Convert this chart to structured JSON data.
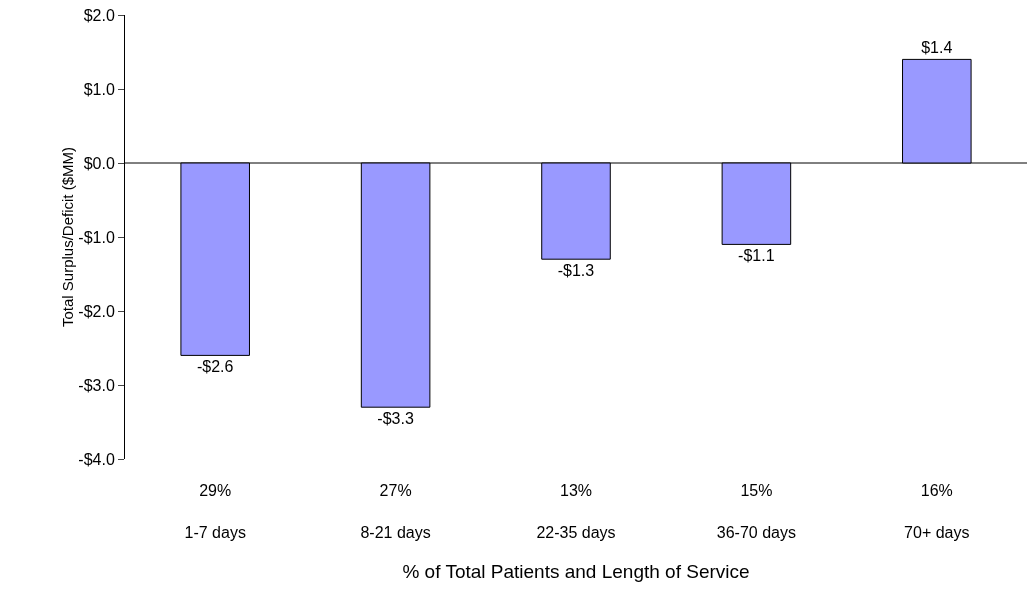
{
  "chart_data": {
    "type": "bar",
    "xlabel": "% of Total Patients and Length of Service",
    "ylabel": "Total Surplus/Deficit ($MM)",
    "categories": [
      "29%\n1-7 days",
      "27%\n8-21 days",
      "13%\n22-35 days",
      "15%\n36-70 days",
      "16%\n70+ days"
    ],
    "values": [
      -2.6,
      -3.3,
      -1.3,
      -1.1,
      1.4
    ],
    "value_labels": [
      "-$2.6",
      "-$3.3",
      "-$1.3",
      "-$1.1",
      "$1.4"
    ],
    "color": "#9999ff",
    "ylim": [
      -4,
      2
    ],
    "yticks": [
      {
        "value": 2,
        "label": "$2.0"
      },
      {
        "value": 1,
        "label": "$1.0"
      },
      {
        "value": 0,
        "label": "$0.0"
      },
      {
        "value": -1,
        "label": "-$1.0"
      },
      {
        "value": -2,
        "label": "-$2.0"
      },
      {
        "value": -3,
        "label": "-$3.0"
      },
      {
        "value": -4,
        "label": "-$4.0"
      }
    ],
    "ref_lines": [
      {
        "axis": "y",
        "value": 0,
        "color": "#000000"
      }
    ],
    "grid": false
  }
}
